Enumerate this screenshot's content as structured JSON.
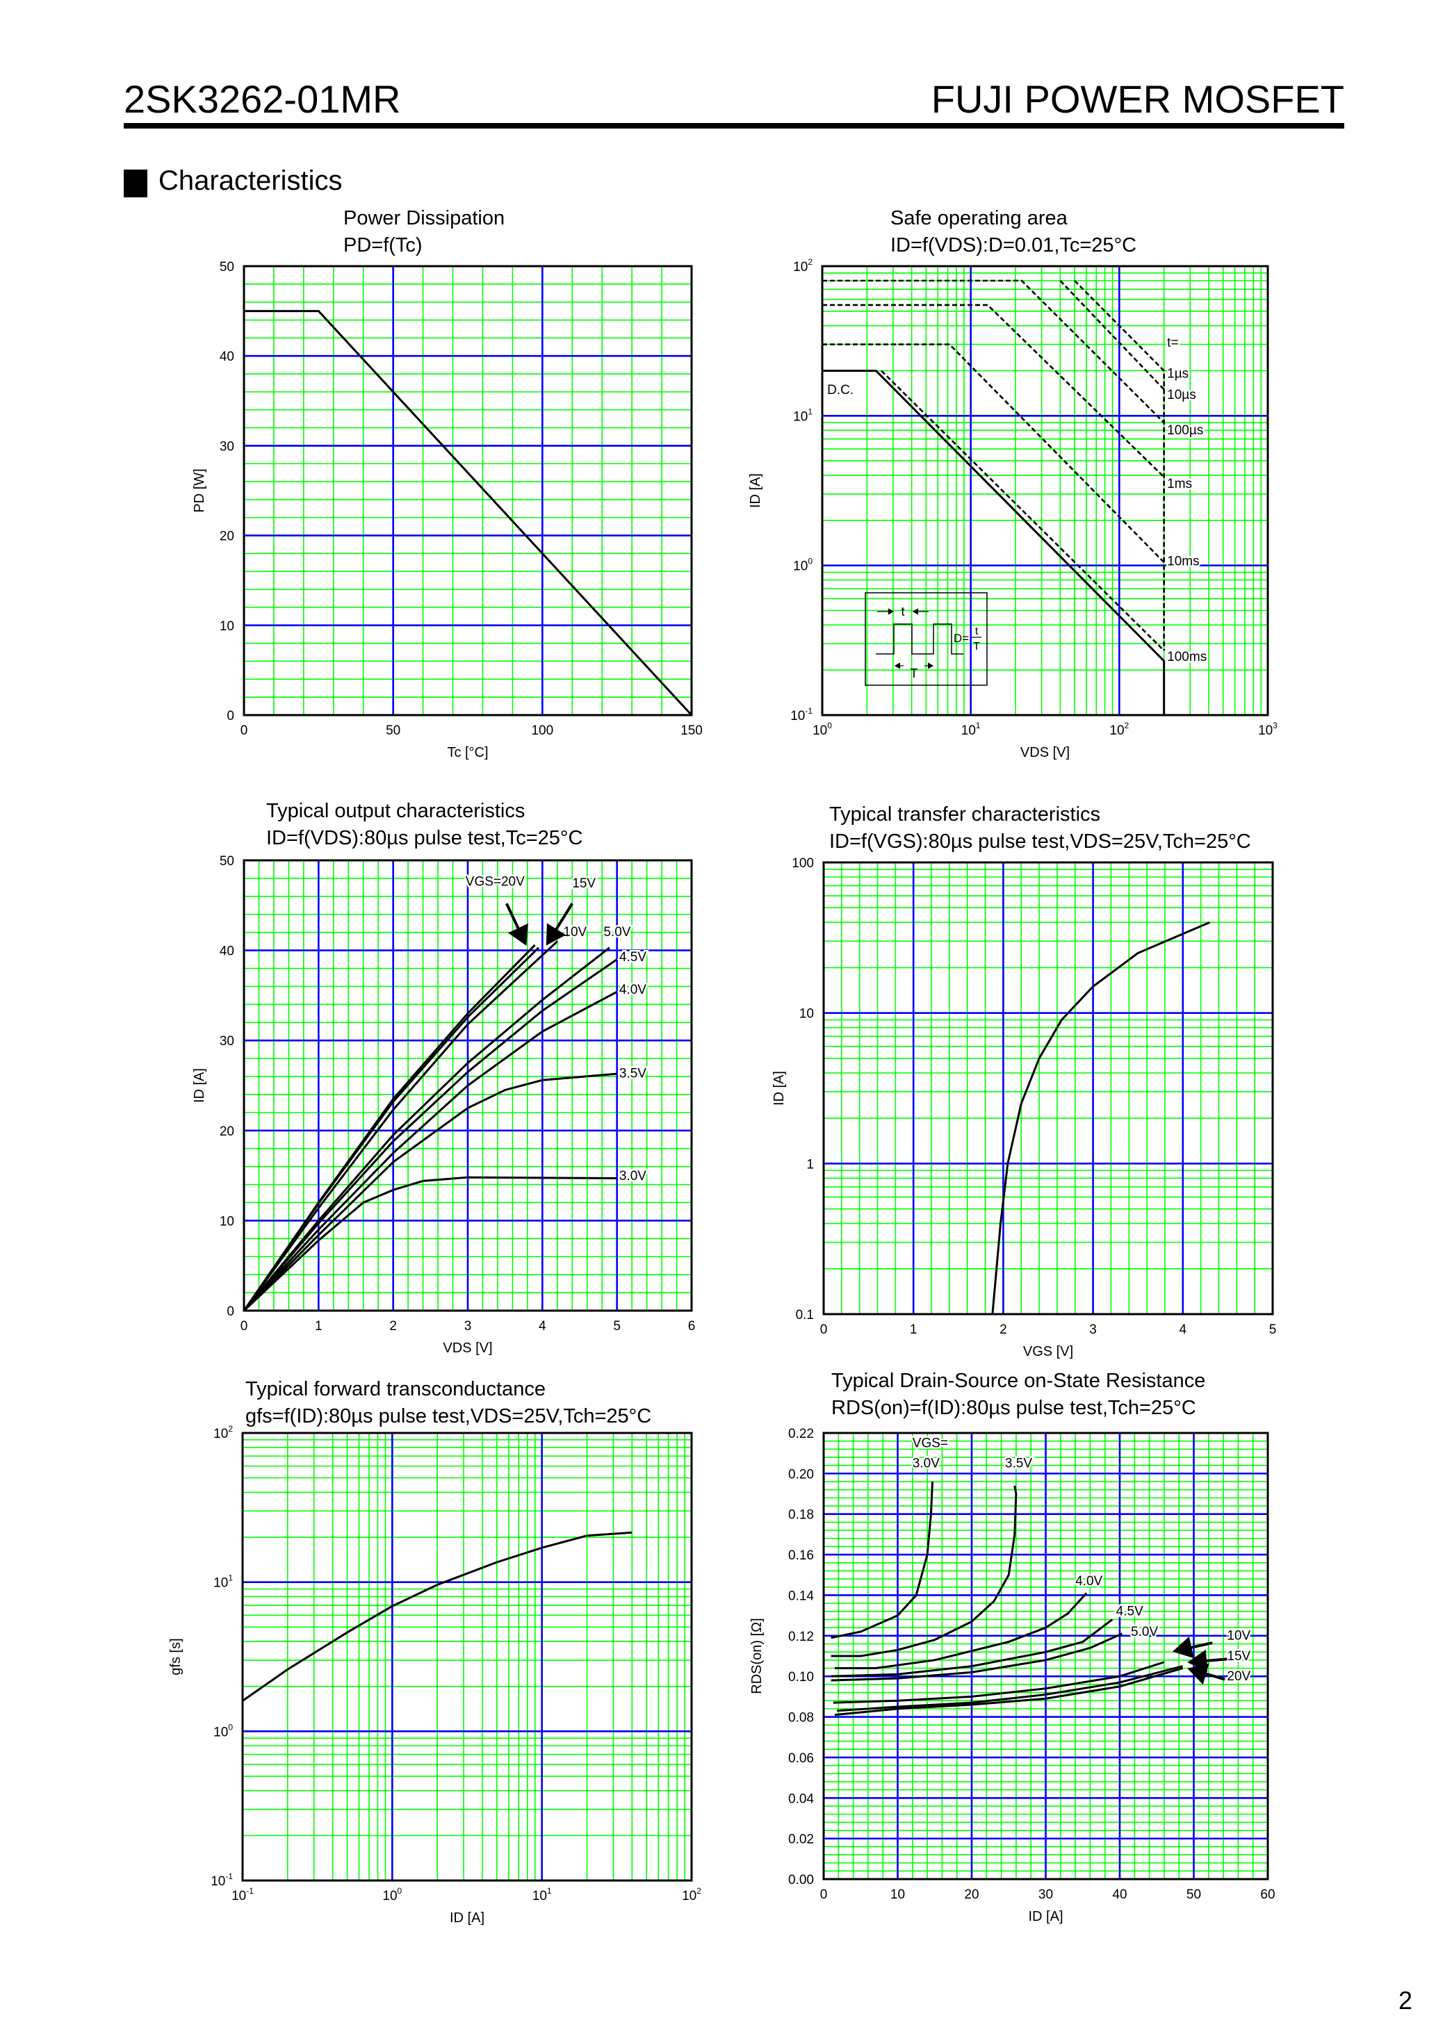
{
  "header": {
    "part_number": "2SK3262-01MR",
    "brand": "FUJI POWER MOSFET"
  },
  "section": {
    "title": "Characteristics"
  },
  "page_number": "2",
  "colors": {
    "minor_grid": "#00ff00",
    "major_grid": "#0000ff",
    "curve": "#000000"
  },
  "chart_data": [
    {
      "type": "line",
      "title": "Power Dissipation",
      "subtitle": "PD=f(Tc)",
      "xlabel": "Tc [°C]",
      "ylabel": "PD [W]",
      "x": {
        "scale": "linear",
        "min": 0,
        "max": 150,
        "major": 50,
        "minor": 10,
        "ticks": [
          0,
          50,
          100,
          150
        ]
      },
      "y": {
        "scale": "linear",
        "min": 0,
        "max": 50,
        "major": 10,
        "minor": 2,
        "ticks": [
          0,
          10,
          20,
          30,
          40,
          50
        ]
      },
      "grid": true,
      "series": [
        {
          "points": [
            [
              0,
              45
            ],
            [
              25,
              45
            ],
            [
              150,
              0
            ]
          ]
        }
      ],
      "annotations": [],
      "arrows": []
    },
    {
      "type": "line",
      "title": "Safe operating area",
      "subtitle": "ID=f(VDS):D=0.01,Tc=25°C",
      "xlabel": "VDS [V]",
      "ylabel": "ID [A]",
      "x": {
        "scale": "log",
        "min": 1,
        "max": 1000,
        "ticks": [
          "10^0",
          "10^1",
          "10^2",
          "10^3"
        ]
      },
      "y": {
        "scale": "log",
        "min": 0.1,
        "max": 100,
        "ticks": [
          "10^-1",
          "10^0",
          "10^1",
          "10^2"
        ]
      },
      "grid": true,
      "series": [
        {
          "name": "D.C.",
          "dashed": false,
          "points": [
            [
              1,
              20
            ],
            [
              2.3,
              20
            ],
            [
              200,
              0.23
            ],
            [
              200,
              0.1
            ]
          ]
        },
        {
          "name": "100ms",
          "dashed": true,
          "points": [
            [
              2.5,
              20
            ],
            [
              200,
              0.27
            ]
          ]
        },
        {
          "name": "10ms",
          "dashed": true,
          "points": [
            [
              1,
              30
            ],
            [
              7.2,
              30
            ],
            [
              200,
              1.05
            ]
          ]
        },
        {
          "name": "1ms",
          "dashed": true,
          "points": [
            [
              1,
              55
            ],
            [
              13,
              55
            ],
            [
              200,
              3.9
            ]
          ]
        },
        {
          "name": "100µs",
          "dashed": true,
          "points": [
            [
              1,
              80
            ],
            [
              22,
              80
            ],
            [
              200,
              9
            ]
          ]
        },
        {
          "name": "10µs",
          "dashed": true,
          "points": [
            [
              40,
              80
            ],
            [
              200,
              15
            ]
          ]
        },
        {
          "name": "1µs",
          "dashed": true,
          "points": [
            [
              50,
              80
            ],
            [
              200,
              20
            ],
            [
              200,
              0.27
            ]
          ]
        }
      ],
      "annotations": [
        {
          "text": "t=",
          "at": [
            210,
            29
          ]
        },
        {
          "text": "1µs",
          "at": [
            210,
            18
          ]
        },
        {
          "text": "10µs",
          "at": [
            210,
            13
          ]
        },
        {
          "text": "100µs",
          "at": [
            210,
            7.5
          ]
        },
        {
          "text": "1ms",
          "at": [
            210,
            3.3
          ]
        },
        {
          "text": "10ms",
          "at": [
            210,
            1.0
          ]
        },
        {
          "text": "100ms",
          "at": [
            210,
            0.23
          ]
        },
        {
          "text": "D.C.",
          "at": [
            1.08,
            14
          ]
        }
      ],
      "arrows": [],
      "inset": {
        "t_label": "t",
        "T_label": "T",
        "duty_label": "D=",
        "duty_num": "t",
        "duty_den": "T"
      }
    },
    {
      "type": "line",
      "title": "Typical output characteristics",
      "subtitle": "ID=f(VDS):80µs pulse test,Tc=25°C",
      "xlabel": "VDS [V]",
      "ylabel": "ID [A]",
      "x": {
        "scale": "linear",
        "min": 0,
        "max": 6,
        "major": 1,
        "minor": 0.2,
        "ticks": [
          0,
          1,
          2,
          3,
          4,
          5,
          6
        ]
      },
      "y": {
        "scale": "linear",
        "min": 0,
        "max": 50,
        "major": 10,
        "minor": 2,
        "ticks": [
          0,
          10,
          20,
          30,
          40,
          50
        ]
      },
      "grid": true,
      "series": [
        {
          "name": "VGS=20V",
          "points": [
            [
              0,
              0
            ],
            [
              1,
              12
            ],
            [
              2,
              23.5
            ],
            [
              3,
              33
            ],
            [
              3.9,
              40.6
            ]
          ]
        },
        {
          "name": "15V",
          "points": [
            [
              0,
              0
            ],
            [
              1,
              11.9
            ],
            [
              2,
              23.2
            ],
            [
              3,
              32.6
            ],
            [
              3.95,
              40.3
            ]
          ]
        },
        {
          "name": "10V",
          "points": [
            [
              0,
              0
            ],
            [
              1,
              11.4
            ],
            [
              2,
              22.3
            ],
            [
              3,
              31.8
            ],
            [
              4.2,
              41
            ]
          ]
        },
        {
          "name": "5.0V",
          "points": [
            [
              0,
              0
            ],
            [
              1,
              10
            ],
            [
              2,
              19.5
            ],
            [
              3,
              27.5
            ],
            [
              4,
              34.5
            ],
            [
              4.9,
              40.3
            ]
          ]
        },
        {
          "name": "4.5V",
          "points": [
            [
              0,
              0
            ],
            [
              1,
              9.7
            ],
            [
              2,
              18.8
            ],
            [
              3,
              26.5
            ],
            [
              4,
              33.3
            ],
            [
              5,
              39
            ]
          ]
        },
        {
          "name": "4.0V",
          "points": [
            [
              0,
              0
            ],
            [
              1,
              9
            ],
            [
              2,
              17.5
            ],
            [
              3,
              25
            ],
            [
              4,
              31
            ],
            [
              5,
              35.4
            ]
          ]
        },
        {
          "name": "3.5V",
          "points": [
            [
              0,
              0
            ],
            [
              1,
              8.4
            ],
            [
              2,
              16.5
            ],
            [
              3,
              22.5
            ],
            [
              3.5,
              24.5
            ],
            [
              4,
              25.6
            ],
            [
              5,
              26.3
            ]
          ]
        },
        {
          "name": "3.0V",
          "points": [
            [
              0,
              0
            ],
            [
              1,
              7.8
            ],
            [
              1.6,
              12
            ],
            [
              2,
              13.4
            ],
            [
              2.4,
              14.4
            ],
            [
              3,
              14.8
            ],
            [
              5,
              14.7
            ]
          ]
        }
      ],
      "annotations": [
        {
          "text": "VGS=20V",
          "at": [
            2.97,
            47.2
          ]
        },
        {
          "text": "15V",
          "at": [
            4.4,
            47
          ]
        },
        {
          "text": "10V",
          "at": [
            4.28,
            41.6
          ]
        },
        {
          "text": "5.0V",
          "at": [
            4.82,
            41.6
          ]
        },
        {
          "text": "4.5V",
          "at": [
            5.03,
            38.8
          ]
        },
        {
          "text": "4.0V",
          "at": [
            5.03,
            35.2
          ]
        },
        {
          "text": "3.5V",
          "at": [
            5.03,
            25.9
          ]
        },
        {
          "text": "3.0V",
          "at": [
            5.03,
            14.5
          ]
        }
      ],
      "arrows": [
        [
          [
            3.52,
            45.2
          ],
          [
            3.77,
            40.8
          ]
        ],
        [
          [
            4.4,
            45.2
          ],
          [
            4.07,
            40.8
          ]
        ]
      ]
    },
    {
      "type": "line",
      "title": "Typical transfer characteristics",
      "subtitle": "ID=f(VGS):80µs pulse test,VDS=25V,Tch=25°C",
      "xlabel": "VGS [V]",
      "ylabel": "ID [A]",
      "x": {
        "scale": "linear",
        "min": 0,
        "max": 5,
        "major": 1,
        "minor": 0.2,
        "ticks": [
          0,
          1,
          2,
          3,
          4,
          5
        ]
      },
      "y": {
        "scale": "log",
        "min": 0.1,
        "max": 100,
        "ticks": [
          "0.1",
          "1",
          "10",
          "100"
        ]
      },
      "grid": true,
      "series": [
        {
          "points": [
            [
              1.88,
              0.1
            ],
            [
              1.97,
              0.4
            ],
            [
              2.05,
              1.0
            ],
            [
              2.2,
              2.5
            ],
            [
              2.4,
              5
            ],
            [
              2.65,
              9
            ],
            [
              3.0,
              15
            ],
            [
              3.5,
              25
            ],
            [
              4.3,
              40
            ]
          ]
        }
      ],
      "annotations": [],
      "arrows": []
    },
    {
      "type": "line",
      "title": "Typical forward transconductance",
      "subtitle": "gfs=f(ID):80µs pulse test,VDS=25V,Tch=25°C",
      "xlabel": "ID [A]",
      "ylabel": "gfs [s]",
      "x": {
        "scale": "log",
        "min": 0.1,
        "max": 100,
        "ticks": [
          "10^-1",
          "10^0",
          "10^1",
          "10^2"
        ]
      },
      "y": {
        "scale": "log",
        "min": 0.1,
        "max": 100,
        "ticks": [
          "10^-1",
          "10^0",
          "10^1",
          "10^2"
        ]
      },
      "grid": true,
      "series": [
        {
          "points": [
            [
              0.1,
              1.6
            ],
            [
              0.2,
              2.6
            ],
            [
              0.5,
              4.6
            ],
            [
              1,
              6.9
            ],
            [
              2,
              9.6
            ],
            [
              5,
              13.6
            ],
            [
              10,
              17
            ],
            [
              20,
              20.5
            ],
            [
              40,
              21.5
            ]
          ]
        }
      ],
      "annotations": [],
      "arrows": []
    },
    {
      "type": "line",
      "title": "Typical Drain-Source on-State Resistance",
      "subtitle": "RDS(on)=f(ID):80µs pulse test,Tch=25°C",
      "xlabel": "ID [A]",
      "ylabel": "RDS(on) [Ω]",
      "x": {
        "scale": "linear",
        "min": 0,
        "max": 60,
        "major": 10,
        "minor": 2,
        "ticks": [
          0,
          10,
          20,
          30,
          40,
          50,
          60
        ]
      },
      "y": {
        "scale": "linear",
        "min": 0,
        "max": 0.22,
        "major": 0.02,
        "minor": 0.004,
        "ticks": [
          "0.00",
          "0.02",
          "0.04",
          "0.06",
          "0.08",
          "0.10",
          "0.12",
          "0.14",
          "0.16",
          "0.18",
          "0.20",
          "0.22"
        ]
      },
      "grid": true,
      "series": [
        {
          "name": "3.0V",
          "points": [
            [
              1,
              0.119
            ],
            [
              5,
              0.122
            ],
            [
              10,
              0.13
            ],
            [
              12.5,
              0.14
            ],
            [
              14,
              0.16
            ],
            [
              14.5,
              0.18
            ],
            [
              14.7,
              0.196
            ]
          ]
        },
        {
          "name": "3.5V",
          "points": [
            [
              1,
              0.11
            ],
            [
              5,
              0.11
            ],
            [
              10,
              0.113
            ],
            [
              15,
              0.118
            ],
            [
              20,
              0.127
            ],
            [
              23,
              0.137
            ],
            [
              25,
              0.15
            ],
            [
              25.8,
              0.17
            ],
            [
              26,
              0.19
            ],
            [
              25.8,
              0.194
            ]
          ]
        },
        {
          "name": "4.0V",
          "points": [
            [
              1.5,
              0.104
            ],
            [
              7,
              0.104
            ],
            [
              15,
              0.108
            ],
            [
              25,
              0.117
            ],
            [
              30,
              0.124
            ],
            [
              33,
              0.131
            ],
            [
              35.5,
              0.141
            ]
          ]
        },
        {
          "name": "4.5V",
          "points": [
            [
              1,
              0.1
            ],
            [
              10,
              0.101
            ],
            [
              20,
              0.105
            ],
            [
              30,
              0.112
            ],
            [
              35,
              0.117
            ],
            [
              39,
              0.128
            ]
          ]
        },
        {
          "name": "5.0V",
          "points": [
            [
              1,
              0.098
            ],
            [
              10,
              0.099
            ],
            [
              20,
              0.102
            ],
            [
              30,
              0.108
            ],
            [
              36,
              0.114
            ],
            [
              40.3,
              0.121
            ]
          ]
        },
        {
          "name": "10V",
          "points": [
            [
              1.3,
              0.087
            ],
            [
              10,
              0.088
            ],
            [
              20,
              0.09
            ],
            [
              30,
              0.094
            ],
            [
              40,
              0.1
            ],
            [
              46,
              0.107
            ]
          ]
        },
        {
          "name": "15V",
          "points": [
            [
              1.8,
              0.083
            ],
            [
              10,
              0.085
            ],
            [
              20,
              0.087
            ],
            [
              30,
              0.091
            ],
            [
              40,
              0.097
            ],
            [
              48.5,
              0.105
            ]
          ]
        },
        {
          "name": "20V",
          "points": [
            [
              1.5,
              0.081
            ],
            [
              10,
              0.084
            ],
            [
              20,
              0.086
            ],
            [
              30,
              0.089
            ],
            [
              40,
              0.095
            ],
            [
              48.5,
              0.104
            ]
          ]
        }
      ],
      "annotations": [
        {
          "text": "VGS=",
          "at": [
            12,
            0.213
          ]
        },
        {
          "text": "3.0V",
          "at": [
            12,
            0.203
          ]
        },
        {
          "text": "3.5V",
          "at": [
            24.5,
            0.203
          ]
        },
        {
          "text": "4.0V",
          "at": [
            34,
            0.145
          ]
        },
        {
          "text": "4.5V",
          "at": [
            39.5,
            0.13
          ]
        },
        {
          "text": "5.0V",
          "at": [
            41.5,
            0.12
          ]
        },
        {
          "text": "10V",
          "at": [
            54.5,
            0.118
          ]
        },
        {
          "text": "15V",
          "at": [
            54.5,
            0.108
          ]
        },
        {
          "text": "20V",
          "at": [
            54.5,
            0.098
          ]
        }
      ],
      "arrows": [
        [
          [
            52.5,
            0.1165
          ],
          [
            47.5,
            0.1125
          ]
        ],
        [
          [
            54.5,
            0.1085
          ],
          [
            49.5,
            0.107
          ]
        ],
        [
          [
            54.2,
            0.0985
          ],
          [
            49.5,
            0.1035
          ]
        ]
      ]
    }
  ]
}
